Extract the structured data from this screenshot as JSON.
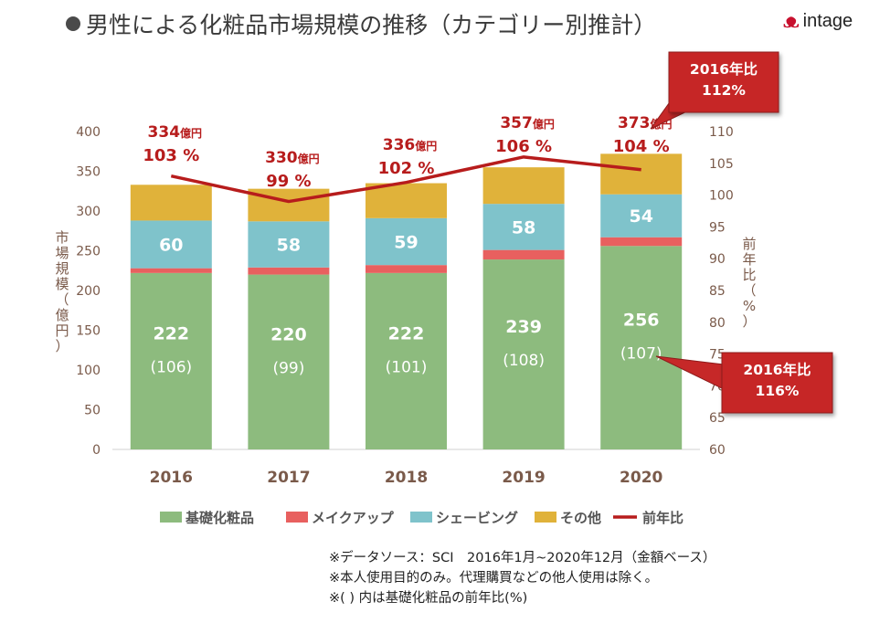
{
  "header": {
    "title": "男性による化粧品市場規模の推移（カテゴリー別推計）",
    "logo_text": "intage"
  },
  "chart_data": {
    "type": "bar",
    "stacked": true,
    "categories": [
      "2016",
      "2017",
      "2018",
      "2019",
      "2020"
    ],
    "ylabel": "市場規模（億円）",
    "y2label": "前年比（%）",
    "ylim": [
      0,
      400
    ],
    "y2lim": [
      60,
      110
    ],
    "yticks": [
      0,
      50,
      100,
      150,
      200,
      250,
      300,
      350,
      400
    ],
    "y2ticks": [
      60,
      65,
      70,
      75,
      80,
      85,
      90,
      95,
      100,
      105,
      110
    ],
    "series": [
      {
        "name": "基礎化粧品",
        "color": "#8dbb7e",
        "values": [
          222,
          220,
          222,
          239,
          256
        ],
        "labels": [
          "222",
          "220",
          "222",
          "239",
          "256"
        ],
        "sublabels": [
          "(106)",
          "(99)",
          "(101)",
          "(108)",
          "(107)"
        ]
      },
      {
        "name": "メイクアップ",
        "color": "#e8605f",
        "values": [
          6,
          9,
          10,
          12,
          11
        ]
      },
      {
        "name": "シェービング",
        "color": "#7fc3cb",
        "values": [
          60,
          58,
          59,
          58,
          54
        ],
        "labels": [
          "60",
          "58",
          "59",
          "58",
          "54"
        ]
      },
      {
        "name": "その他",
        "color": "#e0b23a",
        "values": [
          45,
          41,
          44,
          46,
          51
        ]
      }
    ],
    "line": {
      "name": "前年比",
      "color": "#b71c1c",
      "values": [
        103,
        99,
        102,
        106,
        104
      ]
    },
    "totals": {
      "values": [
        "334",
        "330",
        "336",
        "357",
        "373"
      ],
      "unit": "億円",
      "ratios": [
        "103 %",
        "99 %",
        "102 %",
        "106 %",
        "104 %"
      ]
    },
    "callouts": [
      {
        "line1": "2016年比",
        "line2": "112%"
      },
      {
        "line1": "2016年比",
        "line2": "116%"
      }
    ],
    "legend_position": "bottom"
  },
  "notes": [
    "※データソース：SCI　2016年1月~2020年12月（金額ベース）",
    "※本人使用目的のみ。代理購買などの他人使用は除く。",
    "※( ) 内は基礎化粧品の前年比(%)"
  ]
}
